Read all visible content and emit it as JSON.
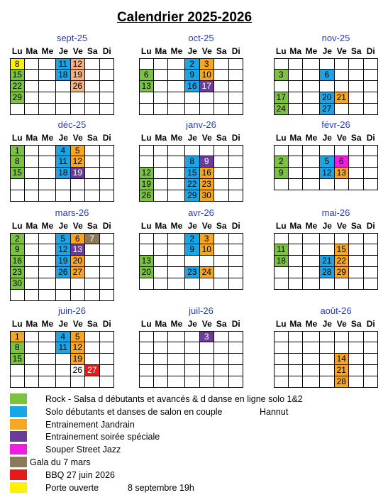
{
  "title": "Calendrier 2025-2026",
  "weekdays": [
    "Lu",
    "Ma",
    "Me",
    "Je",
    "Ve",
    "Sa",
    "Di"
  ],
  "colors": {
    "rock": "#7cc242",
    "solo": "#1aa6e6",
    "jandrain": "#f5a623",
    "special": "#6a3d9a",
    "jazz": "#ee1ddf",
    "gala": "#8c7b59",
    "bbq": "#e41b1b",
    "porte": "#fff200",
    "salmon": "#f4b183"
  },
  "months": [
    {
      "name": "sept-25",
      "rows": 5,
      "days": [
        {
          "d": "8",
          "r": 0,
          "c": 0,
          "color": "porte"
        },
        {
          "d": "11",
          "r": 0,
          "c": 3,
          "color": "solo"
        },
        {
          "d": "12",
          "r": 0,
          "c": 4,
          "color": "salmon"
        },
        {
          "d": "15",
          "r": 1,
          "c": 0,
          "color": "rock"
        },
        {
          "d": "18",
          "r": 1,
          "c": 3,
          "color": "solo"
        },
        {
          "d": "19",
          "r": 1,
          "c": 4,
          "color": "salmon"
        },
        {
          "d": "22",
          "r": 2,
          "c": 0,
          "color": "rock"
        },
        {
          "d": "26",
          "r": 2,
          "c": 4,
          "color": "salmon"
        },
        {
          "d": "29",
          "r": 3,
          "c": 0,
          "color": "rock"
        }
      ]
    },
    {
      "name": "oct-25",
      "rows": 5,
      "days": [
        {
          "d": "2",
          "r": 0,
          "c": 3,
          "color": "solo"
        },
        {
          "d": "3",
          "r": 0,
          "c": 4,
          "color": "jandrain"
        },
        {
          "d": "6",
          "r": 1,
          "c": 0,
          "color": "rock"
        },
        {
          "d": "9",
          "r": 1,
          "c": 3,
          "color": "solo"
        },
        {
          "d": "10",
          "r": 1,
          "c": 4,
          "color": "jandrain"
        },
        {
          "d": "13",
          "r": 2,
          "c": 0,
          "color": "rock"
        },
        {
          "d": "16",
          "r": 2,
          "c": 3,
          "color": "solo"
        },
        {
          "d": "17",
          "r": 2,
          "c": 4,
          "color": "special"
        }
      ]
    },
    {
      "name": "nov-25",
      "rows": 5,
      "days": [
        {
          "d": "3",
          "r": 1,
          "c": 0,
          "color": "rock"
        },
        {
          "d": "6",
          "r": 1,
          "c": 3,
          "color": "solo"
        },
        {
          "d": "17",
          "r": 3,
          "c": 0,
          "color": "rock"
        },
        {
          "d": "20",
          "r": 3,
          "c": 3,
          "color": "solo"
        },
        {
          "d": "21",
          "r": 3,
          "c": 4,
          "color": "jandrain"
        },
        {
          "d": "24",
          "r": 4,
          "c": 0,
          "color": "rock"
        },
        {
          "d": "27",
          "r": 4,
          "c": 3,
          "color": "solo"
        }
      ]
    },
    {
      "name": "déc-25",
      "rows": 5,
      "days": [
        {
          "d": "1",
          "r": 0,
          "c": 0,
          "color": "rock"
        },
        {
          "d": "4",
          "r": 0,
          "c": 3,
          "color": "solo"
        },
        {
          "d": "5",
          "r": 0,
          "c": 4,
          "color": "jandrain"
        },
        {
          "d": "8",
          "r": 1,
          "c": 0,
          "color": "rock"
        },
        {
          "d": "11",
          "r": 1,
          "c": 3,
          "color": "solo"
        },
        {
          "d": "12",
          "r": 1,
          "c": 4,
          "color": "jandrain"
        },
        {
          "d": "15",
          "r": 2,
          "c": 0,
          "color": "rock"
        },
        {
          "d": "18",
          "r": 2,
          "c": 3,
          "color": "solo"
        },
        {
          "d": "19",
          "r": 2,
          "c": 4,
          "color": "special"
        }
      ]
    },
    {
      "name": "janv-26",
      "rows": 5,
      "days": [
        {
          "d": "8",
          "r": 1,
          "c": 3,
          "color": "solo"
        },
        {
          "d": "9",
          "r": 1,
          "c": 4,
          "color": "special"
        },
        {
          "d": "12",
          "r": 2,
          "c": 0,
          "color": "rock"
        },
        {
          "d": "15",
          "r": 2,
          "c": 3,
          "color": "solo"
        },
        {
          "d": "16",
          "r": 2,
          "c": 4,
          "color": "jandrain"
        },
        {
          "d": "19",
          "r": 3,
          "c": 0,
          "color": "rock"
        },
        {
          "d": "22",
          "r": 3,
          "c": 3,
          "color": "solo"
        },
        {
          "d": "23",
          "r": 3,
          "c": 4,
          "color": "jandrain"
        },
        {
          "d": "26",
          "r": 4,
          "c": 0,
          "color": "rock"
        },
        {
          "d": "29",
          "r": 4,
          "c": 3,
          "color": "solo"
        },
        {
          "d": "30",
          "r": 4,
          "c": 4,
          "color": "jandrain"
        }
      ]
    },
    {
      "name": "févr-26",
      "rows": 4,
      "days": [
        {
          "d": "2",
          "r": 1,
          "c": 0,
          "color": "rock"
        },
        {
          "d": "5",
          "r": 1,
          "c": 3,
          "color": "solo"
        },
        {
          "d": "6",
          "r": 1,
          "c": 4,
          "color": "jazz"
        },
        {
          "d": "9",
          "r": 2,
          "c": 0,
          "color": "rock"
        },
        {
          "d": "12",
          "r": 2,
          "c": 3,
          "color": "solo"
        },
        {
          "d": "13",
          "r": 2,
          "c": 4,
          "color": "jandrain"
        }
      ]
    },
    {
      "name": "mars-26",
      "rows": 6,
      "days": [
        {
          "d": "2",
          "r": 0,
          "c": 0,
          "color": "rock"
        },
        {
          "d": "5",
          "r": 0,
          "c": 3,
          "color": "solo"
        },
        {
          "d": "6",
          "r": 0,
          "c": 4,
          "color": "jandrain"
        },
        {
          "d": "7",
          "r": 0,
          "c": 5,
          "color": "gala"
        },
        {
          "d": "9",
          "r": 1,
          "c": 0,
          "color": "rock"
        },
        {
          "d": "12",
          "r": 1,
          "c": 3,
          "color": "solo"
        },
        {
          "d": "13",
          "r": 1,
          "c": 4,
          "color": "special"
        },
        {
          "d": "16",
          "r": 2,
          "c": 0,
          "color": "rock"
        },
        {
          "d": "19",
          "r": 2,
          "c": 3,
          "color": "solo"
        },
        {
          "d": "20",
          "r": 2,
          "c": 4,
          "color": "jandrain"
        },
        {
          "d": "23",
          "r": 3,
          "c": 0,
          "color": "rock"
        },
        {
          "d": "26",
          "r": 3,
          "c": 3,
          "color": "solo"
        },
        {
          "d": "27",
          "r": 3,
          "c": 4,
          "color": "jandrain"
        },
        {
          "d": "30",
          "r": 4,
          "c": 0,
          "color": "rock"
        }
      ]
    },
    {
      "name": "avr-26",
      "rows": 5,
      "days": [
        {
          "d": "2",
          "r": 0,
          "c": 3,
          "color": "solo"
        },
        {
          "d": "3",
          "r": 0,
          "c": 4,
          "color": "jandrain"
        },
        {
          "d": "9",
          "r": 1,
          "c": 3,
          "color": "solo"
        },
        {
          "d": "10",
          "r": 1,
          "c": 4,
          "color": "jandrain"
        },
        {
          "d": "13",
          "r": 2,
          "c": 0,
          "color": "rock"
        },
        {
          "d": "20",
          "r": 3,
          "c": 0,
          "color": "rock"
        },
        {
          "d": "23",
          "r": 3,
          "c": 3,
          "color": "solo"
        },
        {
          "d": "24",
          "r": 3,
          "c": 4,
          "color": "jandrain"
        }
      ]
    },
    {
      "name": "mai-26",
      "rows": 5,
      "days": [
        {
          "d": "11",
          "r": 1,
          "c": 0,
          "color": "rock"
        },
        {
          "d": "15",
          "r": 1,
          "c": 4,
          "color": "jandrain"
        },
        {
          "d": "18",
          "r": 2,
          "c": 0,
          "color": "rock"
        },
        {
          "d": "21",
          "r": 2,
          "c": 3,
          "color": "solo"
        },
        {
          "d": "22",
          "r": 2,
          "c": 4,
          "color": "jandrain"
        },
        {
          "d": "28",
          "r": 3,
          "c": 3,
          "color": "solo"
        },
        {
          "d": "29",
          "r": 3,
          "c": 4,
          "color": "jandrain"
        }
      ]
    },
    {
      "name": "juin-26",
      "rows": 5,
      "days": [
        {
          "d": "1",
          "r": 0,
          "c": 0,
          "color": "jandrain"
        },
        {
          "d": "4",
          "r": 0,
          "c": 3,
          "color": "solo"
        },
        {
          "d": "5",
          "r": 0,
          "c": 4,
          "color": "jandrain"
        },
        {
          "d": "8",
          "r": 1,
          "c": 0,
          "color": "rock"
        },
        {
          "d": "11",
          "r": 1,
          "c": 3,
          "color": "solo"
        },
        {
          "d": "12",
          "r": 1,
          "c": 4,
          "color": "jandrain"
        },
        {
          "d": "15",
          "r": 2,
          "c": 0,
          "color": "rock"
        },
        {
          "d": "19",
          "r": 2,
          "c": 4,
          "color": "jandrain"
        },
        {
          "d": "26",
          "r": 3,
          "c": 4,
          "color": "none"
        },
        {
          "d": "27",
          "r": 3,
          "c": 5,
          "color": "bbq"
        }
      ]
    },
    {
      "name": "juil-26",
      "rows": 5,
      "days": [
        {
          "d": "3",
          "r": 0,
          "c": 4,
          "color": "special"
        }
      ]
    },
    {
      "name": "août-26",
      "rows": 5,
      "days": [
        {
          "d": "14",
          "r": 2,
          "c": 4,
          "color": "jandrain"
        },
        {
          "d": "21",
          "r": 3,
          "c": 4,
          "color": "jandrain"
        },
        {
          "d": "28",
          "r": 4,
          "c": 4,
          "color": "jandrain"
        }
      ]
    }
  ],
  "legend": [
    {
      "color": "rock",
      "text": "Rock - Salsa d débutants et avancés & d danse en ligne solo 1&2",
      "extra": ""
    },
    {
      "color": "solo",
      "text": "Solo débutants et danses de salon en couple",
      "extra": "Hannut"
    },
    {
      "color": "jandrain",
      "text": "Entrainement Jandrain",
      "extra": ""
    },
    {
      "color": "special",
      "text": "Entrainement soirée spéciale",
      "extra": ""
    },
    {
      "color": "jazz",
      "text": "Souper Street Jazz",
      "extra": ""
    },
    {
      "color": "gala",
      "text": "Gala  du 7 mars",
      "extra": ""
    },
    {
      "color": "bbq",
      "text": "BBQ 27 juin 2026",
      "extra": ""
    },
    {
      "color": "porte",
      "text": "Porte ouverte",
      "extra": "8 septembre 19h"
    }
  ]
}
